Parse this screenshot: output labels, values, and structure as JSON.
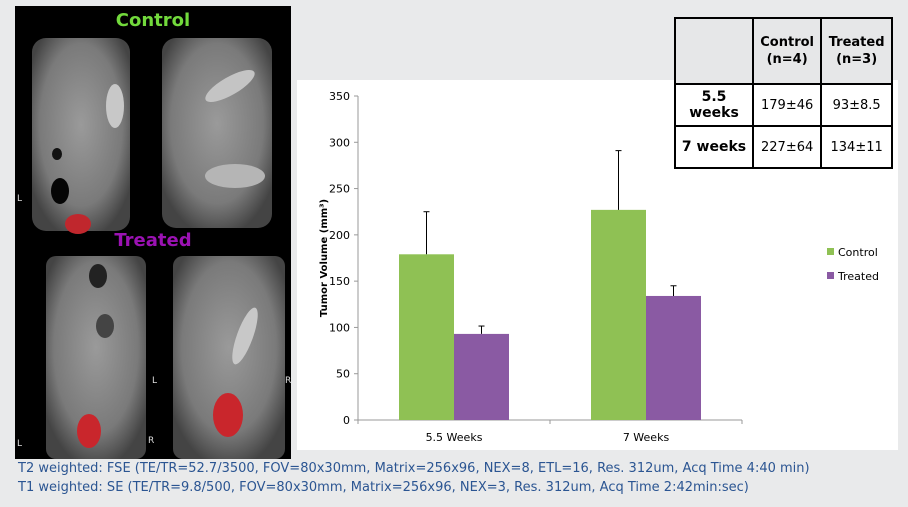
{
  "images": {
    "control_label": "Control",
    "treated_label": "Treated",
    "control_color": "#72d93c",
    "treated_color": "#9b12b3",
    "orientation_marks": [
      "L",
      "L",
      "R",
      "L",
      "R"
    ]
  },
  "table": {
    "columns": [
      "",
      "Control\n(n=4)",
      "Treated\n(n=3)"
    ],
    "col_control_line1": "Control",
    "col_control_line2": "(n=4)",
    "col_treated_line1": "Treated",
    "col_treated_line2": "(n=3)",
    "rows": [
      {
        "label": "5.5 weeks",
        "control": "179±46",
        "treated": "93±8.5"
      },
      {
        "label": "7 weeks",
        "control": "227±64",
        "treated": "134±11"
      }
    ]
  },
  "chart_data": {
    "type": "bar",
    "categories": [
      "5.5 Weeks",
      "7 Weeks"
    ],
    "series": [
      {
        "name": "Control",
        "values": [
          179,
          227
        ],
        "errors": [
          46,
          64
        ],
        "color": "#8fc154"
      },
      {
        "name": "Treated",
        "values": [
          93,
          134
        ],
        "errors": [
          8.5,
          11
        ],
        "color": "#8a5aa3"
      }
    ],
    "ylabel": "Tumor Volume (mm³)",
    "xlabel": "",
    "ylim": [
      0,
      350
    ],
    "yticks": [
      0,
      50,
      100,
      150,
      200,
      250,
      300,
      350
    ],
    "grid": false,
    "legend": "right"
  },
  "footer": {
    "line1": "T2 weighted: FSE (TE/TR=52.7/3500, FOV=80x30mm, Matrix=256x96, NEX=8, ETL=16, Res. 312um, Acq Time 4:40 min)",
    "line2": "T1 weighted: SE (TE/TR=9.8/500, FOV=80x30mm, Matrix=256x96, NEX=3, Res. 312um, Acq Time 2:42min:sec)"
  }
}
